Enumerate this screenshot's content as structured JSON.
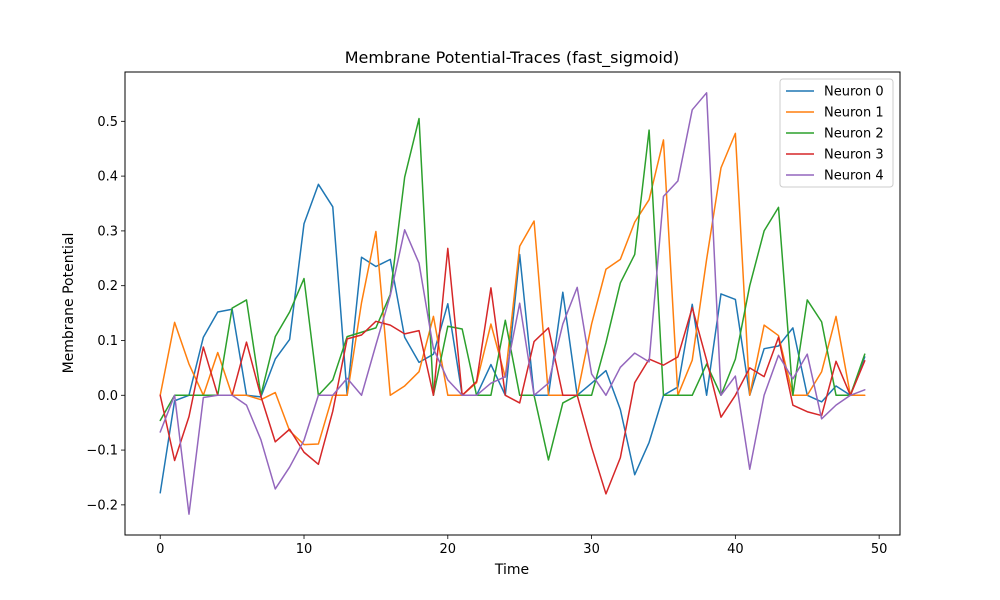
{
  "chart_data": {
    "type": "line",
    "title": "Membrane Potential-Traces (fast_sigmoid)",
    "xlabel": "Time",
    "ylabel": "Membrane Potential",
    "xlim": [
      -2.45,
      51.45
    ],
    "ylim": [
      -0.255,
      0.59
    ],
    "xticks": [
      0,
      10,
      20,
      30,
      40,
      50
    ],
    "yticks": [
      -0.2,
      -0.1,
      0.0,
      0.1,
      0.2,
      0.3,
      0.4,
      0.5
    ],
    "ytick_labels": [
      "−0.2",
      "−0.1",
      "0.0",
      "0.1",
      "0.2",
      "0.3",
      "0.4",
      "0.5"
    ],
    "grid": false,
    "legend_position": "top-right",
    "x": [
      0,
      1,
      2,
      3,
      4,
      5,
      6,
      7,
      8,
      9,
      10,
      11,
      12,
      13,
      14,
      15,
      16,
      17,
      18,
      19,
      20,
      21,
      22,
      23,
      24,
      25,
      26,
      27,
      28,
      29,
      30,
      31,
      32,
      33,
      34,
      35,
      36,
      37,
      38,
      39,
      40,
      41,
      42,
      43,
      44,
      45,
      46,
      47,
      48,
      49
    ],
    "series": [
      {
        "name": "Neuron 0",
        "color": "#1f77b4",
        "values": [
          -0.178,
          -0.01,
          0.0,
          0.106,
          0.152,
          0.157,
          0.0,
          -0.003,
          0.066,
          0.102,
          0.313,
          0.385,
          0.344,
          0.0,
          0.252,
          0.235,
          0.248,
          0.106,
          0.06,
          0.075,
          0.167,
          0.0,
          0.0,
          0.056,
          0.0,
          0.257,
          0.0,
          0.0,
          0.188,
          0.0,
          0.022,
          0.045,
          -0.026,
          -0.145,
          -0.086,
          0.0,
          0.015,
          0.166,
          0.0,
          0.185,
          0.175,
          0.0,
          0.085,
          0.09,
          0.123,
          0.0,
          -0.012,
          0.017,
          0.0,
          0.07
        ]
      },
      {
        "name": "Neuron 1",
        "color": "#ff7f0e",
        "values": [
          0.0,
          0.133,
          0.057,
          0.0,
          0.078,
          0.0,
          0.0,
          -0.008,
          0.005,
          -0.065,
          -0.09,
          -0.089,
          0.0,
          0.0,
          0.169,
          0.299,
          0.0,
          0.017,
          0.043,
          0.144,
          0.0,
          0.0,
          0.023,
          0.13,
          0.033,
          0.272,
          0.318,
          0.0,
          0.0,
          0.0,
          0.13,
          0.23,
          0.248,
          0.316,
          0.357,
          0.466,
          0.0,
          0.064,
          0.248,
          0.415,
          0.478,
          0.0,
          0.128,
          0.109,
          0.0,
          0.0,
          0.043,
          0.144,
          0.0,
          0.0
        ]
      },
      {
        "name": "Neuron 2",
        "color": "#2ca02c",
        "values": [
          -0.046,
          0.0,
          0.0,
          0.0,
          0.0,
          0.159,
          0.174,
          0.0,
          0.107,
          0.152,
          0.213,
          0.0,
          0.028,
          0.107,
          0.115,
          0.123,
          0.184,
          0.398,
          0.505,
          0.0,
          0.126,
          0.121,
          0.0,
          0.0,
          0.137,
          0.0,
          0.0,
          -0.118,
          -0.014,
          0.0,
          0.0,
          0.096,
          0.205,
          0.257,
          0.484,
          0.0,
          0.0,
          0.0,
          0.057,
          0.0,
          0.066,
          0.2,
          0.3,
          0.343,
          0.0,
          0.174,
          0.134,
          0.0,
          0.0,
          0.075
        ]
      },
      {
        "name": "Neuron 3",
        "color": "#d62728",
        "values": [
          0.0,
          -0.119,
          -0.039,
          0.088,
          0.0,
          0.0,
          0.097,
          -0.002,
          -0.085,
          -0.062,
          -0.104,
          -0.126,
          -0.029,
          0.103,
          0.11,
          0.135,
          0.128,
          0.112,
          0.118,
          0.0,
          0.268,
          0.0,
          0.025,
          0.196,
          0.0,
          -0.014,
          0.098,
          0.123,
          0.0,
          0.0,
          -0.095,
          -0.18,
          -0.114,
          0.023,
          0.066,
          0.055,
          0.07,
          0.16,
          0.064,
          -0.04,
          0.0,
          0.05,
          0.034,
          0.106,
          -0.018,
          -0.03,
          -0.037,
          0.062,
          0.0,
          0.063
        ]
      },
      {
        "name": "Neuron 4",
        "color": "#9467bd",
        "values": [
          -0.067,
          0.0,
          -0.217,
          -0.004,
          0.0,
          0.0,
          -0.018,
          -0.081,
          -0.171,
          -0.131,
          -0.082,
          0.0,
          0.0,
          0.031,
          0.0,
          0.092,
          0.182,
          0.302,
          0.241,
          0.085,
          0.028,
          0.0,
          0.0,
          0.022,
          0.034,
          0.168,
          0.0,
          0.022,
          0.13,
          0.197,
          0.039,
          0.0,
          0.051,
          0.077,
          0.061,
          0.363,
          0.391,
          0.521,
          0.552,
          0.0,
          0.035,
          -0.135,
          0.0,
          0.073,
          0.03,
          0.075,
          -0.043,
          -0.018,
          0.0,
          0.01
        ]
      }
    ]
  }
}
